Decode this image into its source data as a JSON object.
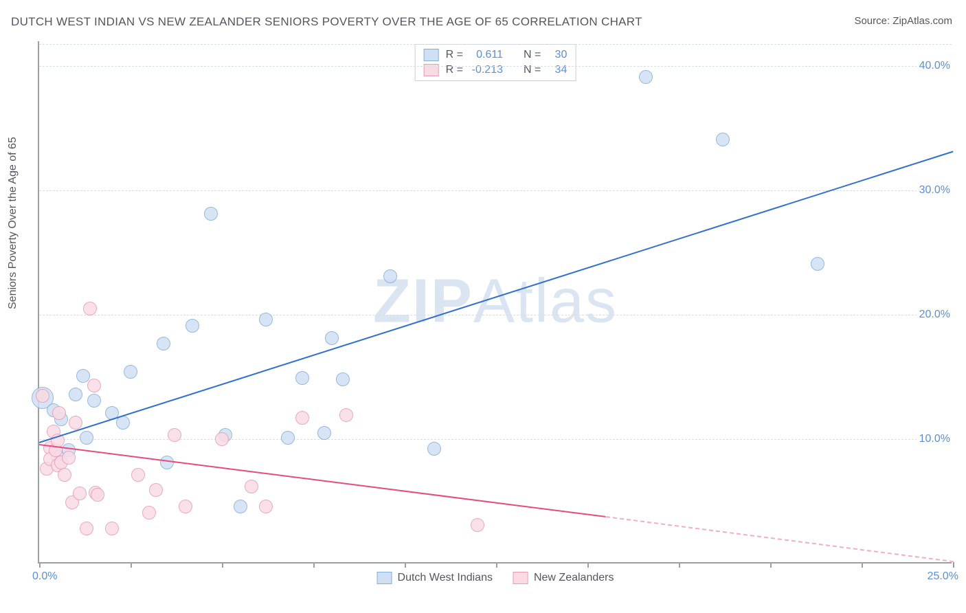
{
  "title": "DUTCH WEST INDIAN VS NEW ZEALANDER SENIORS POVERTY OVER THE AGE OF 65 CORRELATION CHART",
  "source_label": "Source: ZipAtlas.com",
  "yaxis_title": "Seniors Poverty Over the Age of 65",
  "watermark": {
    "bold": "ZIP",
    "rest": "Atlas"
  },
  "chart": {
    "type": "scatter",
    "background_color": "#ffffff",
    "grid_color": "#d6dde5",
    "axis_color": "#9aa0a6",
    "tick_label_color": "#5a8fd6",
    "text_color": "#555560",
    "xlim": [
      0.0,
      25.0
    ],
    "ylim": [
      0.0,
      42.0
    ],
    "yticks": [
      10.0,
      20.0,
      30.0,
      40.0
    ],
    "ytick_labels": [
      "10.0%",
      "20.0%",
      "30.0%",
      "40.0%"
    ],
    "xticks": [
      0.0,
      2.5,
      5.0,
      7.5,
      10.0,
      12.5,
      15.0,
      17.5,
      20.0,
      22.5,
      25.0
    ],
    "xtick_labels_visible": {
      "0.0": "0.0%",
      "25.0": "25.0%"
    },
    "marker_radius": 10,
    "marker_stroke_width": 1.5,
    "trend_line_width": 2.2
  },
  "series": [
    {
      "key": "dutch_west_indians",
      "label": "Dutch West Indians",
      "fill_color": "#cfe0f4",
      "stroke_color": "#86add8",
      "trend_color": "#2f6fd0",
      "R": "0.611",
      "N": "30",
      "trend": {
        "x1": 0.0,
        "y1": 9.8,
        "x2": 25.0,
        "y2": 33.2,
        "dashed": false
      },
      "points": [
        {
          "x": 0.1,
          "y": 13.2,
          "r": 16
        },
        {
          "x": 0.4,
          "y": 12.2
        },
        {
          "x": 0.5,
          "y": 8.5
        },
        {
          "x": 0.6,
          "y": 11.5
        },
        {
          "x": 0.8,
          "y": 9.0
        },
        {
          "x": 1.0,
          "y": 13.5
        },
        {
          "x": 1.2,
          "y": 15.0
        },
        {
          "x": 1.3,
          "y": 10.0
        },
        {
          "x": 1.5,
          "y": 13.0
        },
        {
          "x": 2.0,
          "y": 12.0
        },
        {
          "x": 2.3,
          "y": 11.2
        },
        {
          "x": 2.5,
          "y": 15.3
        },
        {
          "x": 3.4,
          "y": 17.6
        },
        {
          "x": 3.5,
          "y": 8.0
        },
        {
          "x": 4.2,
          "y": 19.0
        },
        {
          "x": 4.7,
          "y": 28.0
        },
        {
          "x": 5.1,
          "y": 10.2
        },
        {
          "x": 5.5,
          "y": 4.5
        },
        {
          "x": 6.2,
          "y": 19.5
        },
        {
          "x": 6.8,
          "y": 10.0
        },
        {
          "x": 7.2,
          "y": 14.8
        },
        {
          "x": 7.8,
          "y": 10.4
        },
        {
          "x": 8.0,
          "y": 18.0
        },
        {
          "x": 8.3,
          "y": 14.7
        },
        {
          "x": 9.6,
          "y": 23.0
        },
        {
          "x": 10.8,
          "y": 9.1
        },
        {
          "x": 16.6,
          "y": 39.0
        },
        {
          "x": 18.7,
          "y": 34.0
        },
        {
          "x": 21.3,
          "y": 24.0
        }
      ]
    },
    {
      "key": "new_zealanders",
      "label": "New Zealanders",
      "fill_color": "#fadbe4",
      "stroke_color": "#e99bb3",
      "trend_color": "#e64b7b",
      "R": "-0.213",
      "N": "34",
      "trend_solid": {
        "x1": 0.0,
        "y1": 9.6,
        "x2": 15.5,
        "y2": 3.8
      },
      "trend_dashed": {
        "x1": 15.5,
        "y1": 3.8,
        "x2": 25.0,
        "y2": 0.2
      },
      "points": [
        {
          "x": 0.1,
          "y": 13.4
        },
        {
          "x": 0.2,
          "y": 7.5
        },
        {
          "x": 0.3,
          "y": 9.2
        },
        {
          "x": 0.3,
          "y": 8.3
        },
        {
          "x": 0.4,
          "y": 10.5
        },
        {
          "x": 0.45,
          "y": 9.0
        },
        {
          "x": 0.5,
          "y": 7.8
        },
        {
          "x": 0.5,
          "y": 9.8
        },
        {
          "x": 0.55,
          "y": 12.0
        },
        {
          "x": 0.6,
          "y": 8.0
        },
        {
          "x": 0.7,
          "y": 7.0
        },
        {
          "x": 0.8,
          "y": 8.4
        },
        {
          "x": 0.9,
          "y": 4.8
        },
        {
          "x": 1.0,
          "y": 11.2
        },
        {
          "x": 1.1,
          "y": 5.5
        },
        {
          "x": 1.3,
          "y": 2.7
        },
        {
          "x": 1.4,
          "y": 20.4
        },
        {
          "x": 1.5,
          "y": 14.2
        },
        {
          "x": 1.55,
          "y": 5.6
        },
        {
          "x": 1.6,
          "y": 5.4
        },
        {
          "x": 2.0,
          "y": 2.7
        },
        {
          "x": 2.7,
          "y": 7.0
        },
        {
          "x": 3.0,
          "y": 4.0
        },
        {
          "x": 3.2,
          "y": 5.8
        },
        {
          "x": 3.7,
          "y": 10.2
        },
        {
          "x": 4.0,
          "y": 4.5
        },
        {
          "x": 5.0,
          "y": 9.9
        },
        {
          "x": 5.8,
          "y": 6.1
        },
        {
          "x": 6.2,
          "y": 4.5
        },
        {
          "x": 7.2,
          "y": 11.6
        },
        {
          "x": 8.4,
          "y": 11.8
        },
        {
          "x": 12.0,
          "y": 3.0
        }
      ]
    }
  ],
  "stats_box_labels": {
    "R": "R =",
    "N": "N ="
  }
}
